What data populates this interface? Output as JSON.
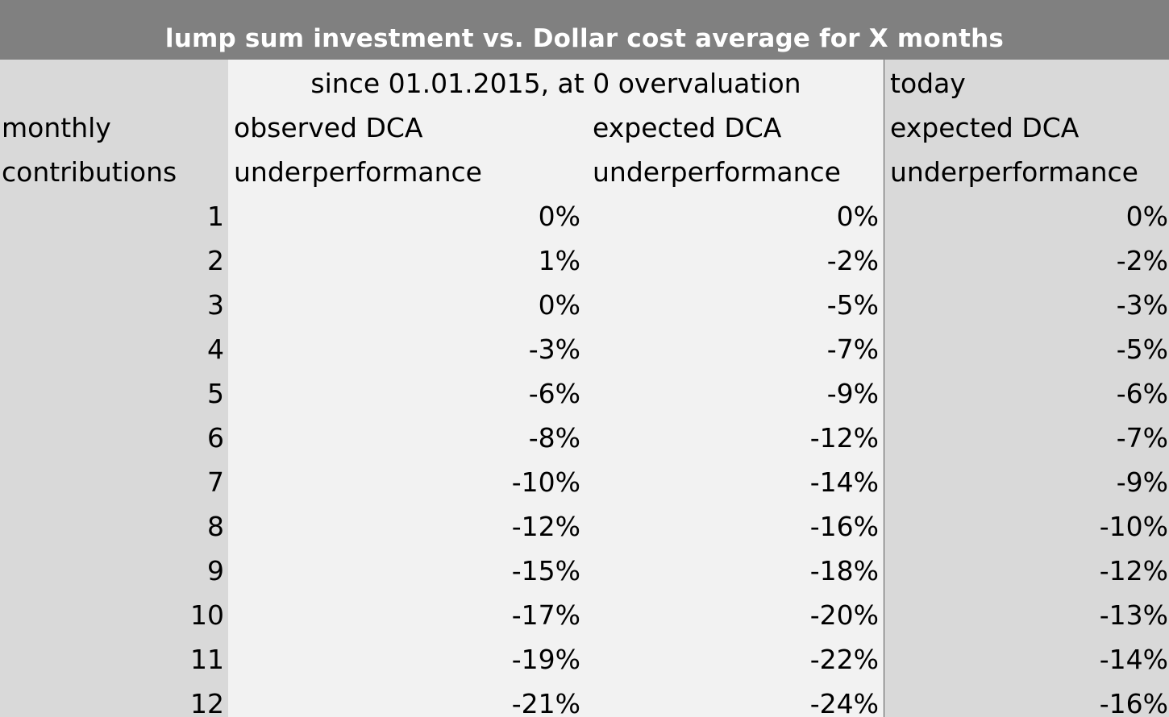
{
  "chart_data": {
    "type": "table",
    "title": "lump sum investment vs. Dollar cost average for X months",
    "group_headers": {
      "historic": "since 01.01.2015, at 0 overvaluation",
      "today": "today"
    },
    "columns": [
      {
        "line1": "monthly",
        "line2": "contributions"
      },
      {
        "line1": "observed DCA",
        "line2": "underperformance"
      },
      {
        "line1": "expected DCA",
        "line2": "underperformance"
      },
      {
        "line1": "expected DCA",
        "line2": "underperformance"
      }
    ],
    "rows": [
      {
        "months": "1",
        "observed": "0%",
        "expected": "0%",
        "today": "0%"
      },
      {
        "months": "2",
        "observed": "1%",
        "expected": "-2%",
        "today": "-2%"
      },
      {
        "months": "3",
        "observed": "0%",
        "expected": "-5%",
        "today": "-3%"
      },
      {
        "months": "4",
        "observed": "-3%",
        "expected": "-7%",
        "today": "-5%"
      },
      {
        "months": "5",
        "observed": "-6%",
        "expected": "-9%",
        "today": "-6%"
      },
      {
        "months": "6",
        "observed": "-8%",
        "expected": "-12%",
        "today": "-7%"
      },
      {
        "months": "7",
        "observed": "-10%",
        "expected": "-14%",
        "today": "-9%"
      },
      {
        "months": "8",
        "observed": "-12%",
        "expected": "-16%",
        "today": "-10%"
      },
      {
        "months": "9",
        "observed": "-15%",
        "expected": "-18%",
        "today": "-12%"
      },
      {
        "months": "10",
        "observed": "-17%",
        "expected": "-20%",
        "today": "-13%"
      },
      {
        "months": "11",
        "observed": "-19%",
        "expected": "-22%",
        "today": "-14%"
      },
      {
        "months": "12",
        "observed": "-21%",
        "expected": "-24%",
        "today": "-16%"
      }
    ]
  },
  "colors": {
    "title_bar": "#808080",
    "title_text": "#ffffff",
    "sheet_background": "#d9d9d9",
    "highlight_band": "#f2f2f2",
    "divider": "#5a5a5a"
  }
}
